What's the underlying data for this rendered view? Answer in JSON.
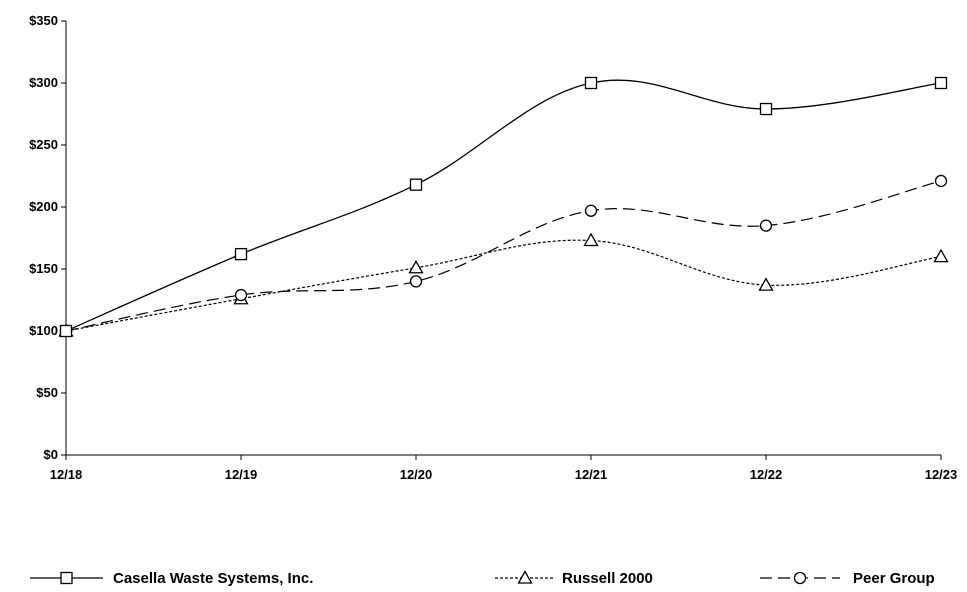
{
  "chart_data": {
    "type": "line",
    "title": "",
    "xlabel": "",
    "ylabel": "",
    "categories": [
      "12/18",
      "12/19",
      "12/20",
      "12/21",
      "12/22",
      "12/23"
    ],
    "y_tick_labels": [
      "$0",
      "$50",
      "$100",
      "$150",
      "$200",
      "$250",
      "$300",
      "$350"
    ],
    "y_ticks": [
      0,
      50,
      100,
      150,
      200,
      250,
      300,
      350
    ],
    "ylim": [
      0,
      350
    ],
    "grid": false,
    "legend_position": "bottom",
    "series": [
      {
        "name": "Casella Waste Systems, Inc.",
        "marker": "square",
        "line_style": "solid",
        "values": [
          100,
          162,
          218,
          300,
          279,
          300
        ]
      },
      {
        "name": "Russell 2000",
        "marker": "triangle",
        "line_style": "dotted",
        "values": [
          100,
          126,
          151,
          173,
          137,
          160
        ]
      },
      {
        "name": "Peer Group",
        "marker": "circle",
        "line_style": "dashed",
        "values": [
          100,
          129,
          140,
          197,
          185,
          221
        ]
      }
    ]
  }
}
